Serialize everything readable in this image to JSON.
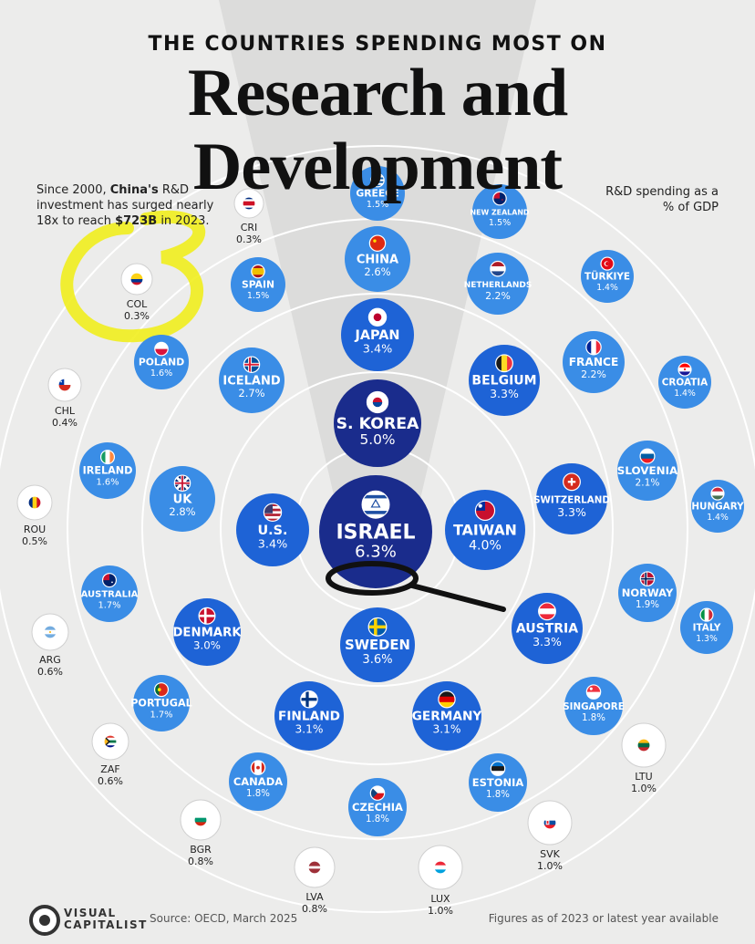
{
  "header": {
    "kicker": "THE COUNTRIES SPENDING MOST ON",
    "title": "Research and Development"
  },
  "notes": {
    "left_1": "Since 2000, ",
    "left_china": "China's",
    "left_2": " R&D investment has surged nearly 18x to reach ",
    "left_amount": "$723B",
    "left_3": " in 2023.",
    "right": "R&D spending as a % of GDP"
  },
  "footer": {
    "brand_line1": "VISUAL",
    "brand_line2": "CAPITALIST",
    "source": "Source: OECD, March 2025",
    "figures": "Figures as of 2023 or latest year available"
  },
  "colors": {
    "background": "#ececeb",
    "tier_inner": "#1a2c8c",
    "tier_mid": "#1e63d6",
    "tier_outer": "#3a8de6",
    "tier_light": "#ffffff",
    "highlight": "#f1ee1e"
  },
  "chart_data": {
    "type": "bubble",
    "value_unit": "% of GDP",
    "series": [
      {
        "country": "ISRAEL",
        "value": 6.3,
        "flag": "Israel"
      },
      {
        "country": "S. KOREA",
        "value": 5.0,
        "flag": "South Korea"
      },
      {
        "country": "TAIWAN",
        "value": 4.0,
        "flag": "Taiwan"
      },
      {
        "country": "SWEDEN",
        "value": 3.6,
        "flag": "Sweden"
      },
      {
        "country": "U.S.",
        "value": 3.4,
        "flag": "United States"
      },
      {
        "country": "JAPAN",
        "value": 3.4,
        "flag": "Japan"
      },
      {
        "country": "BELGIUM",
        "value": 3.3,
        "flag": "Belgium"
      },
      {
        "country": "AUSTRIA",
        "value": 3.3,
        "flag": "Austria"
      },
      {
        "country": "SWITZERLAND",
        "value": 3.3,
        "flag": "Switzerland"
      },
      {
        "country": "GERMANY",
        "value": 3.1,
        "flag": "Germany"
      },
      {
        "country": "FINLAND",
        "value": 3.1,
        "flag": "Finland"
      },
      {
        "country": "DENMARK",
        "value": 3.0,
        "flag": "Denmark"
      },
      {
        "country": "UK",
        "value": 2.8,
        "flag": "United Kingdom"
      },
      {
        "country": "ICELAND",
        "value": 2.7,
        "flag": "Iceland"
      },
      {
        "country": "CHINA",
        "value": 2.6,
        "flag": "China"
      },
      {
        "country": "Netherlands",
        "value": 2.2,
        "flag": "Netherlands"
      },
      {
        "country": "FRANCE",
        "value": 2.2,
        "flag": "France"
      },
      {
        "country": "SLOVENIA",
        "value": 2.1,
        "flag": "Slovenia"
      },
      {
        "country": "NORWAY",
        "value": 1.9,
        "flag": "Norway"
      },
      {
        "country": "CANADA",
        "value": 1.8,
        "flag": "Canada"
      },
      {
        "country": "CZECHIA",
        "value": 1.8,
        "flag": "Czechia"
      },
      {
        "country": "ESTONIA",
        "value": 1.8,
        "flag": "Estonia"
      },
      {
        "country": "SINGAPORE",
        "value": 1.8,
        "flag": "Singapore"
      },
      {
        "country": "PORTUGAL",
        "value": 1.7,
        "flag": "Portugal"
      },
      {
        "country": "AUSTRALIA",
        "value": 1.7,
        "flag": "Australia"
      },
      {
        "country": "IRELAND",
        "value": 1.6,
        "flag": "Ireland"
      },
      {
        "country": "POLAND",
        "value": 1.6,
        "flag": "Poland"
      },
      {
        "country": "SPAIN",
        "value": 1.5,
        "flag": "Spain"
      },
      {
        "country": "GREECE",
        "value": 1.5,
        "flag": "Greece"
      },
      {
        "country": "NEW ZEALAND",
        "value": 1.5,
        "flag": "New Zealand"
      },
      {
        "country": "TÜRKIYE",
        "value": 1.4,
        "flag": "Turkiye"
      },
      {
        "country": "CROATIA",
        "value": 1.4,
        "flag": "Croatia"
      },
      {
        "country": "HUNGARY",
        "value": 1.4,
        "flag": "Hungary"
      },
      {
        "country": "ITALY",
        "value": 1.3,
        "flag": "Italy"
      },
      {
        "country": "LTU",
        "value": 1.0,
        "flag": "Lithuania"
      },
      {
        "country": "SVK",
        "value": 1.0,
        "flag": "Slovakia"
      },
      {
        "country": "LUX",
        "value": 1.0,
        "flag": "Luxembourg"
      },
      {
        "country": "LVA",
        "value": 0.8,
        "flag": "Latvia"
      },
      {
        "country": "BGR",
        "value": 0.8,
        "flag": "Bulgaria"
      },
      {
        "country": "ZAF",
        "value": 0.6,
        "flag": "South Africa"
      },
      {
        "country": "ARG",
        "value": 0.6,
        "flag": "Argentina"
      },
      {
        "country": "ROU",
        "value": 0.5,
        "flag": "Romania"
      },
      {
        "country": "CHL",
        "value": 0.4,
        "flag": "Chile"
      },
      {
        "country": "COL",
        "value": 0.3,
        "flag": "Colombia"
      },
      {
        "country": "CRI",
        "value": 0.3,
        "flag": "Costa Rica"
      }
    ]
  }
}
